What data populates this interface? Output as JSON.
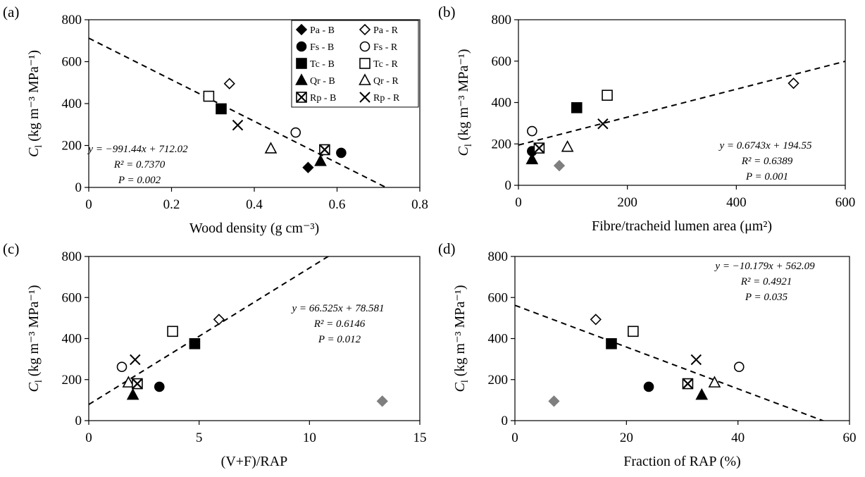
{
  "figure": {
    "legend": [
      {
        "label": "Pa - B",
        "species": "Pa",
        "fill": "filled",
        "marker": "diamond"
      },
      {
        "label": "Pa - R",
        "species": "Pa",
        "fill": "open",
        "marker": "diamond"
      },
      {
        "label": "Fs - B",
        "species": "Fs",
        "fill": "filled",
        "marker": "circle"
      },
      {
        "label": "Fs - R",
        "species": "Fs",
        "fill": "open",
        "marker": "circle"
      },
      {
        "label": "Tc - B",
        "species": "Tc",
        "fill": "filled",
        "marker": "square"
      },
      {
        "label": "Tc - R",
        "species": "Tc",
        "fill": "open",
        "marker": "square"
      },
      {
        "label": "Qr - B",
        "species": "Qr",
        "fill": "filled",
        "marker": "triangle"
      },
      {
        "label": "Qr - R",
        "species": "Qr",
        "fill": "open",
        "marker": "triangle"
      },
      {
        "label": "Rp - B",
        "species": "Rp",
        "fill": "filled",
        "marker": "crossed-square"
      },
      {
        "label": "Rp - R",
        "species": "Rp",
        "fill": "open",
        "marker": "x"
      }
    ],
    "ylabel_main": "C",
    "ylabel_sub": "l",
    "ylabel_units": " (kg m⁻³ MPa⁻¹)",
    "colors": {
      "marker": "#000000",
      "grey_marker": "#7f7f7f",
      "axis": "#000000"
    }
  },
  "chart_data": [
    {
      "type": "scatter",
      "panel_label": "(a)",
      "xlabel": "Wood density (g cm⁻³)",
      "xlim": [
        0,
        0.8
      ],
      "ylim": [
        0,
        800
      ],
      "xticks": [
        "0",
        "0.2",
        "0.4",
        "0.6",
        "0.8"
      ],
      "yticks": [
        "0",
        "200",
        "400",
        "600",
        "800"
      ],
      "points": [
        {
          "series": "Pa - B",
          "x": 0.53,
          "y": 95
        },
        {
          "series": "Pa - R",
          "x": 0.34,
          "y": 495
        },
        {
          "series": "Fs - B",
          "x": 0.61,
          "y": 165
        },
        {
          "series": "Fs - R",
          "x": 0.5,
          "y": 262
        },
        {
          "series": "Tc - B",
          "x": 0.32,
          "y": 375
        },
        {
          "series": "Tc - R",
          "x": 0.29,
          "y": 435
        },
        {
          "series": "Qr - B",
          "x": 0.56,
          "y": 125
        },
        {
          "series": "Qr - R",
          "x": 0.44,
          "y": 185
        },
        {
          "series": "Rp - B",
          "x": 0.57,
          "y": 180
        },
        {
          "series": "Rp - R",
          "x": 0.36,
          "y": 297
        }
      ],
      "trendline": {
        "slope": -991.44,
        "intercept": 712.02
      },
      "equation": "y = −991.44x + 712.02",
      "r2": "R² = 0.7370",
      "p": "P = 0.002"
    },
    {
      "type": "scatter",
      "panel_label": "(b)",
      "xlabel": "Fibre/tracheid lumen area (μm²)",
      "xlim": [
        0,
        600
      ],
      "ylim": [
        0,
        800
      ],
      "xticks": [
        "0",
        "200",
        "400",
        "600"
      ],
      "yticks": [
        "0",
        "200",
        "400",
        "600",
        "800"
      ],
      "points": [
        {
          "series": "Pa - B",
          "x": 75,
          "y": 95,
          "grey": true
        },
        {
          "series": "Pa - R",
          "x": 505,
          "y": 493
        },
        {
          "series": "Fs - B",
          "x": 25,
          "y": 165
        },
        {
          "series": "Fs - R",
          "x": 25,
          "y": 262
        },
        {
          "series": "Tc - B",
          "x": 107,
          "y": 375
        },
        {
          "series": "Tc - R",
          "x": 163,
          "y": 435
        },
        {
          "series": "Qr - B",
          "x": 25,
          "y": 125
        },
        {
          "series": "Qr - R",
          "x": 90,
          "y": 185
        },
        {
          "series": "Rp - B",
          "x": 38,
          "y": 180
        },
        {
          "series": "Rp - R",
          "x": 155,
          "y": 297
        }
      ],
      "trendline": {
        "slope": 0.6743,
        "intercept": 194.55
      },
      "equation": "y = 0.6743x + 194.55",
      "r2": "R² = 0.6389",
      "p": "P = 0.001"
    },
    {
      "type": "scatter",
      "panel_label": "(c)",
      "xlabel": "(V+F)/RAP",
      "xlim": [
        0,
        15
      ],
      "ylim": [
        0,
        800
      ],
      "xticks": [
        "0",
        "5",
        "10",
        "15"
      ],
      "yticks": [
        "0",
        "200",
        "400",
        "600",
        "800"
      ],
      "points": [
        {
          "series": "Pa - B",
          "x": 13.3,
          "y": 95,
          "grey": true
        },
        {
          "series": "Pa - R",
          "x": 5.9,
          "y": 493
        },
        {
          "series": "Fs - B",
          "x": 3.2,
          "y": 165
        },
        {
          "series": "Fs - R",
          "x": 1.5,
          "y": 262
        },
        {
          "series": "Tc - B",
          "x": 4.8,
          "y": 375
        },
        {
          "series": "Tc - R",
          "x": 3.8,
          "y": 435
        },
        {
          "series": "Qr - B",
          "x": 2.0,
          "y": 125
        },
        {
          "series": "Qr - R",
          "x": 1.8,
          "y": 185
        },
        {
          "series": "Rp - B",
          "x": 2.2,
          "y": 180
        },
        {
          "series": "Rp - R",
          "x": 2.1,
          "y": 297
        }
      ],
      "trendline": {
        "slope": 66.525,
        "intercept": 78.581
      },
      "equation": "y = 66.525x + 78.581",
      "r2": "R² = 0.6146",
      "p": "P = 0.012"
    },
    {
      "type": "scatter",
      "panel_label": "(d)",
      "xlabel": "Fraction of RAP (%)",
      "xlim": [
        0,
        60
      ],
      "ylim": [
        0,
        800
      ],
      "xticks": [
        "0",
        "20",
        "40",
        "60"
      ],
      "yticks": [
        "0",
        "200",
        "400",
        "600",
        "800"
      ],
      "points": [
        {
          "series": "Pa - B",
          "x": 7,
          "y": 95,
          "grey": true
        },
        {
          "series": "Pa - R",
          "x": 14.5,
          "y": 493
        },
        {
          "series": "Fs - B",
          "x": 24,
          "y": 165
        },
        {
          "series": "Fs - R",
          "x": 40.2,
          "y": 262
        },
        {
          "series": "Tc - B",
          "x": 17.3,
          "y": 375
        },
        {
          "series": "Tc - R",
          "x": 21.2,
          "y": 435
        },
        {
          "series": "Qr - B",
          "x": 33.5,
          "y": 125
        },
        {
          "series": "Qr - R",
          "x": 35.8,
          "y": 185
        },
        {
          "series": "Rp - B",
          "x": 31,
          "y": 180
        },
        {
          "series": "Rp - R",
          "x": 32.5,
          "y": 297
        }
      ],
      "trendline": {
        "slope": -10.179,
        "intercept": 562.09
      },
      "equation": "y = −10.179x + 562.09",
      "r2": "R² = 0.4921",
      "p": "P = 0.035"
    }
  ]
}
